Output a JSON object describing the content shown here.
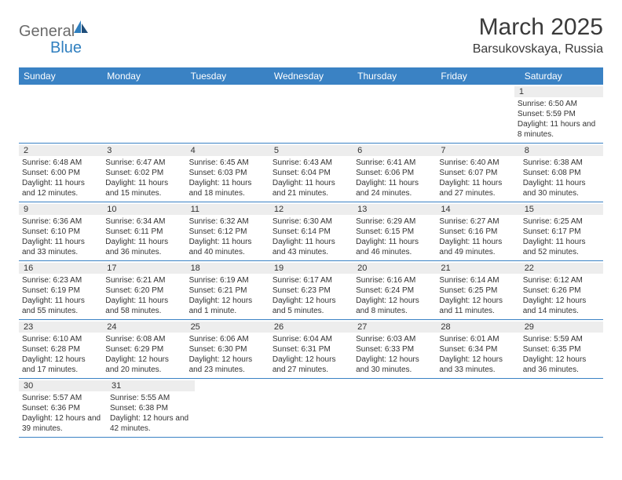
{
  "logo": {
    "part1": "General",
    "part2": "Blue"
  },
  "title": "March 2025",
  "location": "Barsukovskaya, Russia",
  "header_color": "#3a82c4",
  "header_text_color": "#ffffff",
  "shaded_bg": "#ededed",
  "divider_color": "#3a82c4",
  "day_headers": [
    "Sunday",
    "Monday",
    "Tuesday",
    "Wednesday",
    "Thursday",
    "Friday",
    "Saturday"
  ],
  "weeks": [
    [
      null,
      null,
      null,
      null,
      null,
      null,
      {
        "num": "1",
        "sunrise": "Sunrise: 6:50 AM",
        "sunset": "Sunset: 5:59 PM",
        "daylight": "Daylight: 11 hours and 8 minutes."
      }
    ],
    [
      {
        "num": "2",
        "sunrise": "Sunrise: 6:48 AM",
        "sunset": "Sunset: 6:00 PM",
        "daylight": "Daylight: 11 hours and 12 minutes."
      },
      {
        "num": "3",
        "sunrise": "Sunrise: 6:47 AM",
        "sunset": "Sunset: 6:02 PM",
        "daylight": "Daylight: 11 hours and 15 minutes."
      },
      {
        "num": "4",
        "sunrise": "Sunrise: 6:45 AM",
        "sunset": "Sunset: 6:03 PM",
        "daylight": "Daylight: 11 hours and 18 minutes."
      },
      {
        "num": "5",
        "sunrise": "Sunrise: 6:43 AM",
        "sunset": "Sunset: 6:04 PM",
        "daylight": "Daylight: 11 hours and 21 minutes."
      },
      {
        "num": "6",
        "sunrise": "Sunrise: 6:41 AM",
        "sunset": "Sunset: 6:06 PM",
        "daylight": "Daylight: 11 hours and 24 minutes."
      },
      {
        "num": "7",
        "sunrise": "Sunrise: 6:40 AM",
        "sunset": "Sunset: 6:07 PM",
        "daylight": "Daylight: 11 hours and 27 minutes."
      },
      {
        "num": "8",
        "sunrise": "Sunrise: 6:38 AM",
        "sunset": "Sunset: 6:08 PM",
        "daylight": "Daylight: 11 hours and 30 minutes."
      }
    ],
    [
      {
        "num": "9",
        "sunrise": "Sunrise: 6:36 AM",
        "sunset": "Sunset: 6:10 PM",
        "daylight": "Daylight: 11 hours and 33 minutes."
      },
      {
        "num": "10",
        "sunrise": "Sunrise: 6:34 AM",
        "sunset": "Sunset: 6:11 PM",
        "daylight": "Daylight: 11 hours and 36 minutes."
      },
      {
        "num": "11",
        "sunrise": "Sunrise: 6:32 AM",
        "sunset": "Sunset: 6:12 PM",
        "daylight": "Daylight: 11 hours and 40 minutes."
      },
      {
        "num": "12",
        "sunrise": "Sunrise: 6:30 AM",
        "sunset": "Sunset: 6:14 PM",
        "daylight": "Daylight: 11 hours and 43 minutes."
      },
      {
        "num": "13",
        "sunrise": "Sunrise: 6:29 AM",
        "sunset": "Sunset: 6:15 PM",
        "daylight": "Daylight: 11 hours and 46 minutes."
      },
      {
        "num": "14",
        "sunrise": "Sunrise: 6:27 AM",
        "sunset": "Sunset: 6:16 PM",
        "daylight": "Daylight: 11 hours and 49 minutes."
      },
      {
        "num": "15",
        "sunrise": "Sunrise: 6:25 AM",
        "sunset": "Sunset: 6:17 PM",
        "daylight": "Daylight: 11 hours and 52 minutes."
      }
    ],
    [
      {
        "num": "16",
        "sunrise": "Sunrise: 6:23 AM",
        "sunset": "Sunset: 6:19 PM",
        "daylight": "Daylight: 11 hours and 55 minutes."
      },
      {
        "num": "17",
        "sunrise": "Sunrise: 6:21 AM",
        "sunset": "Sunset: 6:20 PM",
        "daylight": "Daylight: 11 hours and 58 minutes."
      },
      {
        "num": "18",
        "sunrise": "Sunrise: 6:19 AM",
        "sunset": "Sunset: 6:21 PM",
        "daylight": "Daylight: 12 hours and 1 minute."
      },
      {
        "num": "19",
        "sunrise": "Sunrise: 6:17 AM",
        "sunset": "Sunset: 6:23 PM",
        "daylight": "Daylight: 12 hours and 5 minutes."
      },
      {
        "num": "20",
        "sunrise": "Sunrise: 6:16 AM",
        "sunset": "Sunset: 6:24 PM",
        "daylight": "Daylight: 12 hours and 8 minutes."
      },
      {
        "num": "21",
        "sunrise": "Sunrise: 6:14 AM",
        "sunset": "Sunset: 6:25 PM",
        "daylight": "Daylight: 12 hours and 11 minutes."
      },
      {
        "num": "22",
        "sunrise": "Sunrise: 6:12 AM",
        "sunset": "Sunset: 6:26 PM",
        "daylight": "Daylight: 12 hours and 14 minutes."
      }
    ],
    [
      {
        "num": "23",
        "sunrise": "Sunrise: 6:10 AM",
        "sunset": "Sunset: 6:28 PM",
        "daylight": "Daylight: 12 hours and 17 minutes."
      },
      {
        "num": "24",
        "sunrise": "Sunrise: 6:08 AM",
        "sunset": "Sunset: 6:29 PM",
        "daylight": "Daylight: 12 hours and 20 minutes."
      },
      {
        "num": "25",
        "sunrise": "Sunrise: 6:06 AM",
        "sunset": "Sunset: 6:30 PM",
        "daylight": "Daylight: 12 hours and 23 minutes."
      },
      {
        "num": "26",
        "sunrise": "Sunrise: 6:04 AM",
        "sunset": "Sunset: 6:31 PM",
        "daylight": "Daylight: 12 hours and 27 minutes."
      },
      {
        "num": "27",
        "sunrise": "Sunrise: 6:03 AM",
        "sunset": "Sunset: 6:33 PM",
        "daylight": "Daylight: 12 hours and 30 minutes."
      },
      {
        "num": "28",
        "sunrise": "Sunrise: 6:01 AM",
        "sunset": "Sunset: 6:34 PM",
        "daylight": "Daylight: 12 hours and 33 minutes."
      },
      {
        "num": "29",
        "sunrise": "Sunrise: 5:59 AM",
        "sunset": "Sunset: 6:35 PM",
        "daylight": "Daylight: 12 hours and 36 minutes."
      }
    ],
    [
      {
        "num": "30",
        "sunrise": "Sunrise: 5:57 AM",
        "sunset": "Sunset: 6:36 PM",
        "daylight": "Daylight: 12 hours and 39 minutes."
      },
      {
        "num": "31",
        "sunrise": "Sunrise: 5:55 AM",
        "sunset": "Sunset: 6:38 PM",
        "daylight": "Daylight: 12 hours and 42 minutes."
      },
      null,
      null,
      null,
      null,
      null
    ]
  ]
}
